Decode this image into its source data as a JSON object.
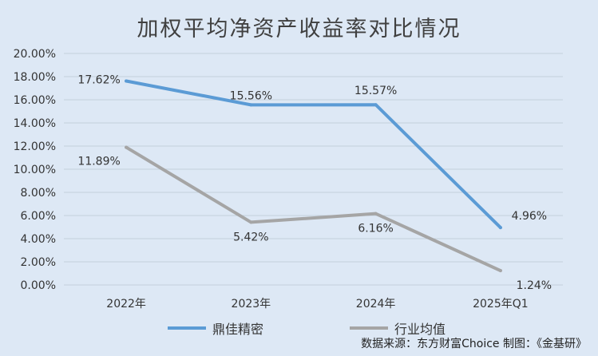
{
  "title": "加权平均净资产收益率对比情况",
  "source": "数据来源：东方财富Choice  制图：《金基研》",
  "colors": {
    "background": "#dde8f5",
    "series_1": "#5b9bd5",
    "series_2": "#a5a5a5",
    "grid": "#c4cfdb"
  },
  "chart_data": {
    "type": "line",
    "title": "加权平均净资产收益率对比情况",
    "categories": [
      "2022年",
      "2023年",
      "2024年",
      "2025年Q1"
    ],
    "ylim": [
      0,
      20
    ],
    "yticks": [
      "0.00%",
      "2.00%",
      "4.00%",
      "6.00%",
      "8.00%",
      "10.00%",
      "12.00%",
      "14.00%",
      "16.00%",
      "18.00%",
      "20.00%"
    ],
    "grid": true,
    "legend_position": "bottom",
    "series": [
      {
        "name": "鼎佳精密",
        "values": [
          17.62,
          15.56,
          15.57,
          4.96
        ],
        "labels": [
          "17.62%",
          "15.56%",
          "15.57%",
          "4.96%"
        ]
      },
      {
        "name": "行业均值",
        "values": [
          11.89,
          5.42,
          6.16,
          1.24
        ],
        "labels": [
          "11.89%",
          "5.42%",
          "6.16%",
          "1.24%"
        ]
      }
    ]
  }
}
